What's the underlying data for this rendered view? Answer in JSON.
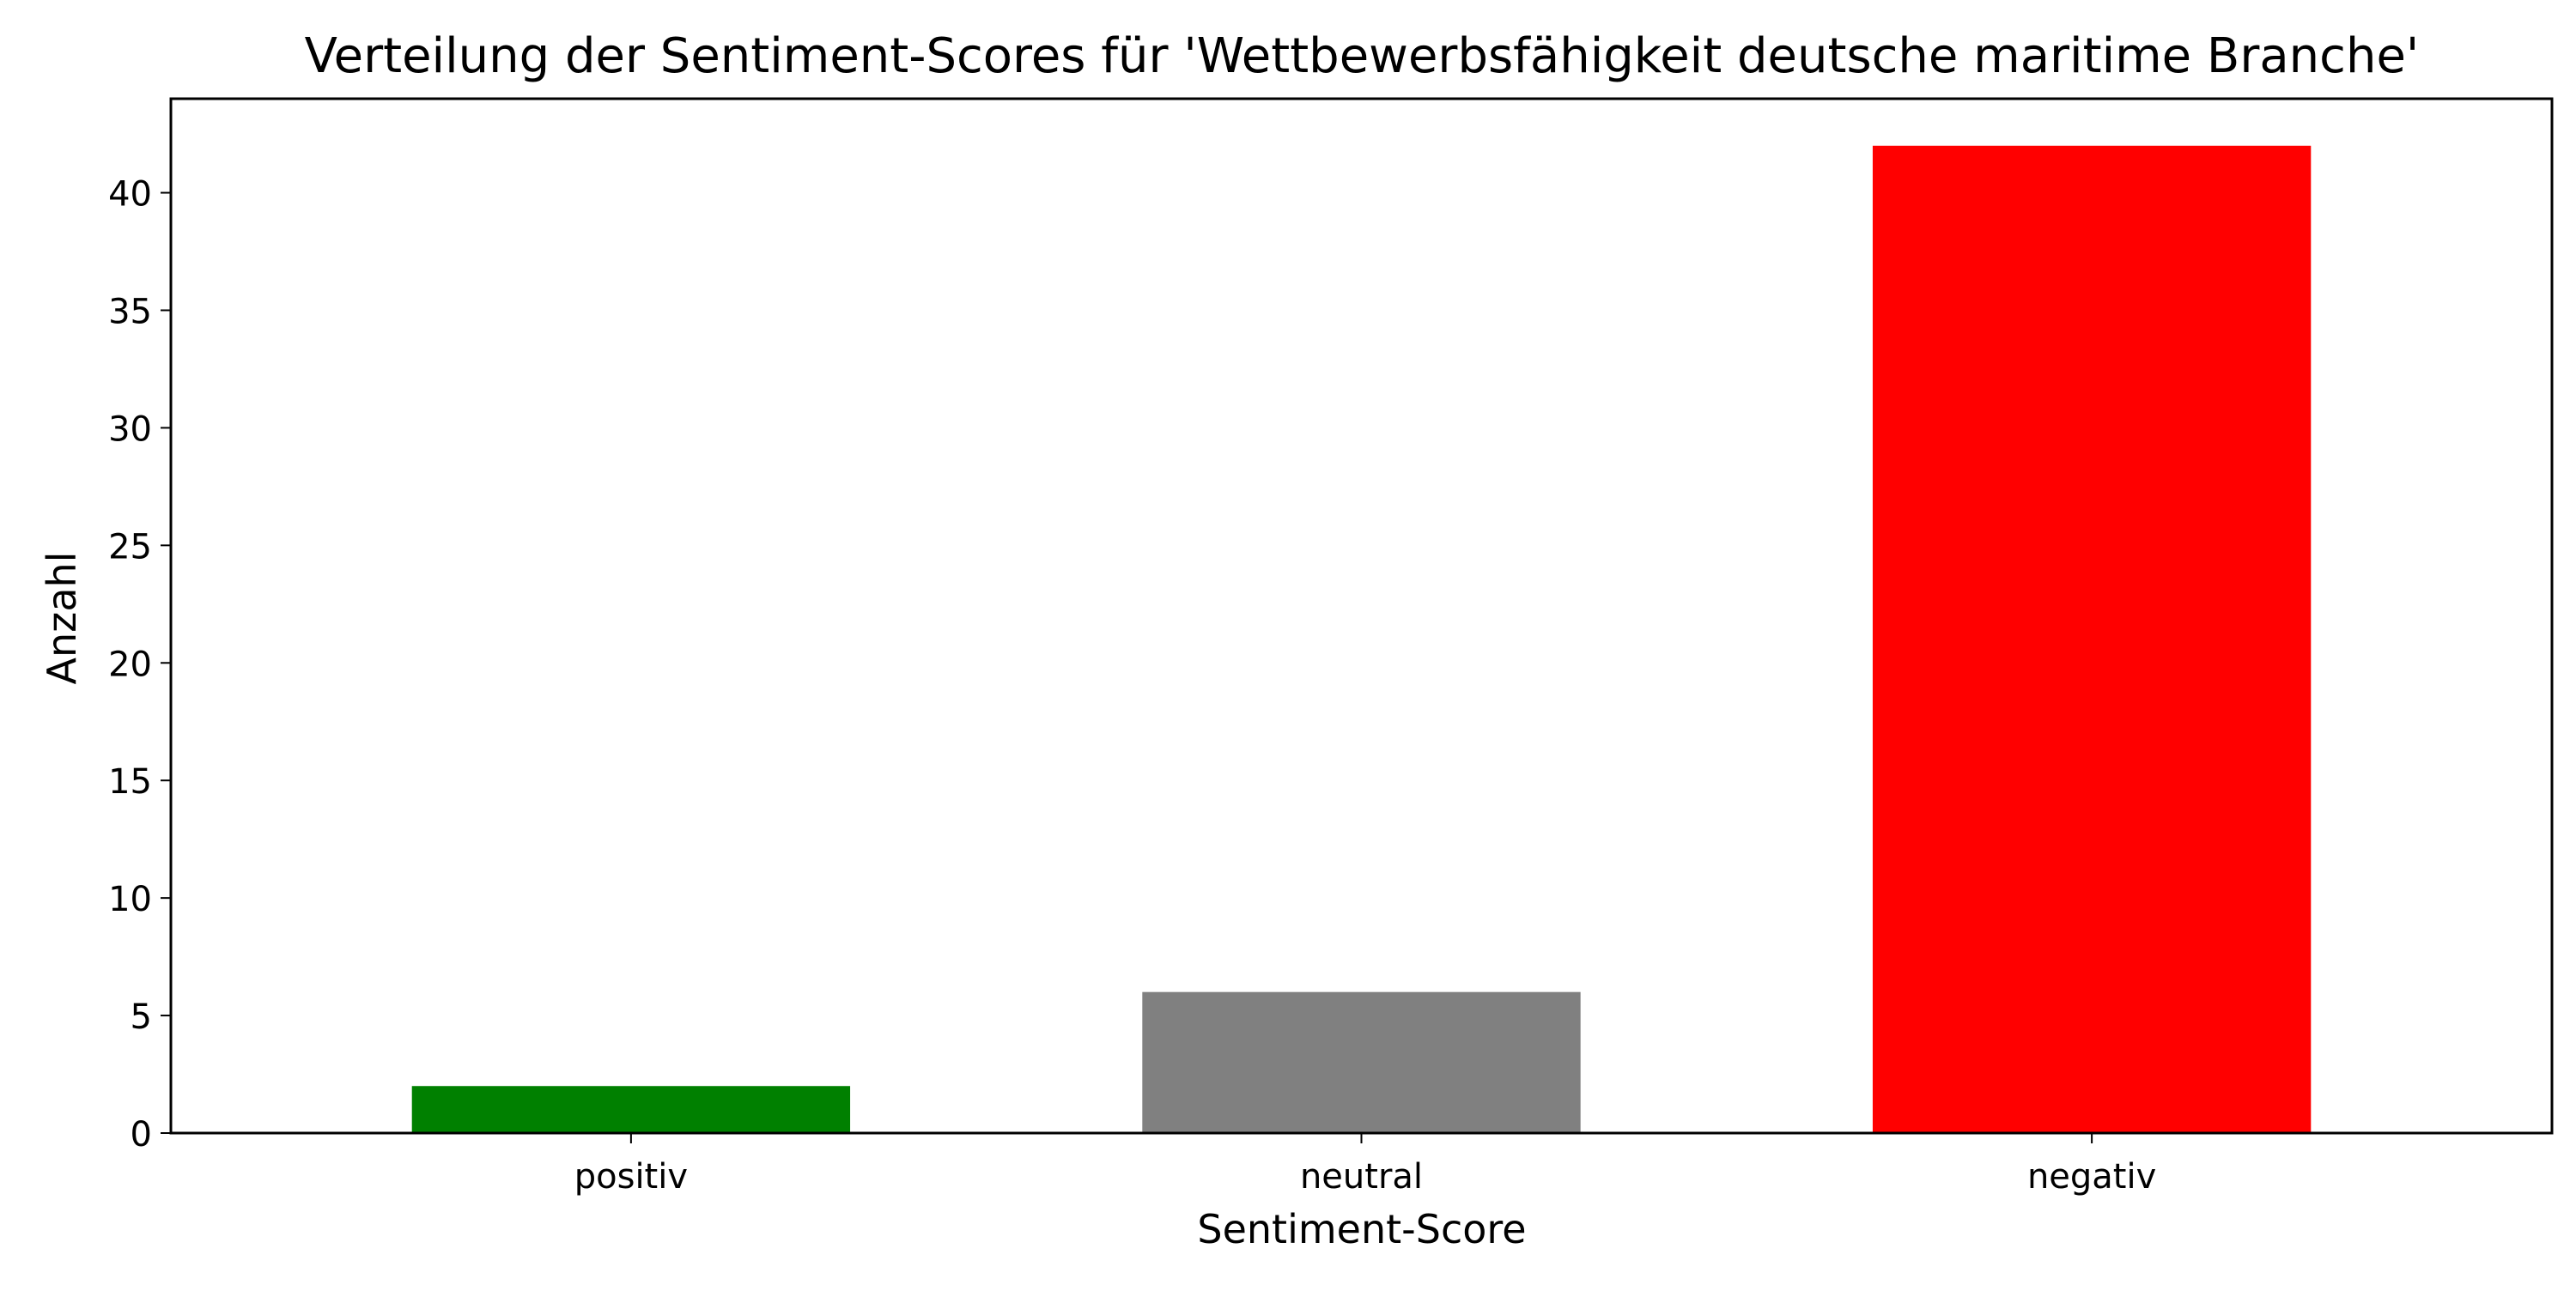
{
  "chart_data": {
    "type": "bar",
    "title": "Verteilung der Sentiment-Scores für 'Wettbewerbsfähigkeit deutsche maritime Branche'",
    "xlabel": "Sentiment-Score",
    "ylabel": "Anzahl",
    "categories": [
      "positiv",
      "neutral",
      "negativ"
    ],
    "values": [
      2,
      6,
      42
    ],
    "colors": [
      "#008000",
      "#808080",
      "#ff0000"
    ],
    "ylim": [
      0,
      44
    ],
    "yticks": [
      0,
      5,
      10,
      15,
      20,
      25,
      30,
      35,
      40
    ],
    "grid": false,
    "baseline": {
      "value": 0,
      "style": "dashed"
    }
  }
}
